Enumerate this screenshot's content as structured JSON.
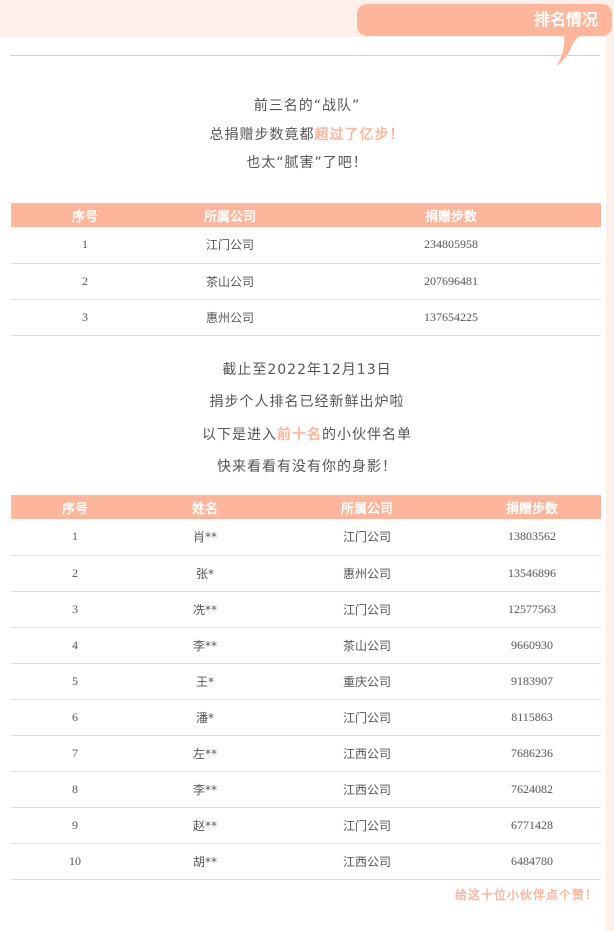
{
  "header": {
    "title": "排名情况"
  },
  "intro": {
    "line1": "前三名的“战队”",
    "line2_a": "总捐赠步数竟都",
    "line2_b": "超过了亿步！",
    "line3": "也太“腻害”了吧！"
  },
  "team_table": {
    "headers": [
      "序号",
      "所属公司",
      "捐赠步数"
    ],
    "rows": [
      [
        "1",
        "江门公司",
        "234805958"
      ],
      [
        "2",
        "茶山公司",
        "207696481"
      ],
      [
        "3",
        "惠州公司",
        "137654225"
      ]
    ]
  },
  "mid": {
    "line1": "截止至2022年12月13日",
    "line2": "捐步个人排名已经新鲜出炉啦",
    "line3_a": "以下是进入",
    "line3_b": "前十名",
    "line3_c": "的小伙伴名单",
    "line4": "快来看看有没有你的身影！"
  },
  "person_table": {
    "headers": [
      "序号",
      "姓名",
      "所属公司",
      "捐赠步数"
    ],
    "rows": [
      [
        "1",
        "肖**",
        "江门公司",
        "13803562"
      ],
      [
        "2",
        "张*",
        "惠州公司",
        "13546896"
      ],
      [
        "3",
        "冼**",
        "江门公司",
        "12577563"
      ],
      [
        "4",
        "李**",
        "茶山公司",
        "9660930"
      ],
      [
        "5",
        "王*",
        "重庆公司",
        "9183907"
      ],
      [
        "6",
        "潘*",
        "江门公司",
        "8115863"
      ],
      [
        "7",
        "左**",
        "江西公司",
        "7686236"
      ],
      [
        "8",
        "李**",
        "江西公司",
        "7624082"
      ],
      [
        "9",
        "赵**",
        "江门公司",
        "6771428"
      ],
      [
        "10",
        "胡**",
        "江西公司",
        "6484780"
      ]
    ]
  },
  "footer": {
    "text": "给这十位小伙伴点个赞！"
  },
  "colors": {
    "accent": "#fdb59c"
  }
}
